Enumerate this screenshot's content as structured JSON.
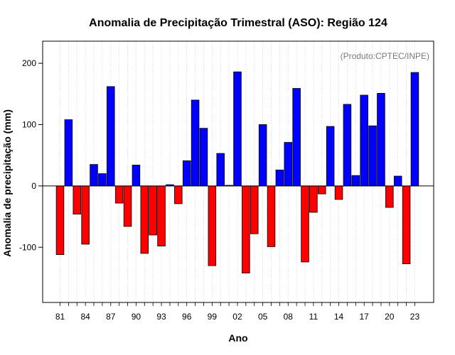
{
  "chart_data": {
    "type": "bar",
    "title": "Anomalia de Precipitação Trimestral (ASO): Região 124",
    "xlabel": "Ano",
    "ylabel": "Anomalia de precipitação (mm)",
    "credit": "(Produto:CPTEC/INPE)",
    "ylim": [
      -190,
      236
    ],
    "y_ticks": [
      -100,
      0,
      100,
      200
    ],
    "x_tick_labels": [
      "81",
      "84",
      "87",
      "90",
      "93",
      "96",
      "99",
      "02",
      "05",
      "08",
      "11",
      "14",
      "17",
      "20",
      "23"
    ],
    "years": [
      1981,
      1982,
      1983,
      1984,
      1985,
      1986,
      1987,
      1988,
      1989,
      1990,
      1991,
      1992,
      1993,
      1994,
      1995,
      1996,
      1997,
      1998,
      1999,
      2000,
      2001,
      2002,
      2003,
      2004,
      2005,
      2006,
      2007,
      2008,
      2009,
      2010,
      2011,
      2012,
      2013,
      2014,
      2015,
      2016,
      2017,
      2018,
      2019,
      2020,
      2021,
      2022,
      2023
    ],
    "values": [
      -112,
      108,
      -46,
      -95,
      35,
      20,
      162,
      -28,
      -66,
      34,
      -110,
      -80,
      -98,
      2,
      -29,
      41,
      140,
      94,
      -130,
      53,
      1,
      186,
      -142,
      -78,
      100,
      -99,
      26,
      71,
      159,
      -124,
      -43,
      -13,
      97,
      -22,
      133,
      17,
      148,
      98,
      151,
      -35,
      16,
      -127,
      185
    ],
    "colors": {
      "positive": "#0000ff",
      "negative": "#ff0000",
      "zero_line": "#000000",
      "grid": "#cccccc"
    }
  }
}
